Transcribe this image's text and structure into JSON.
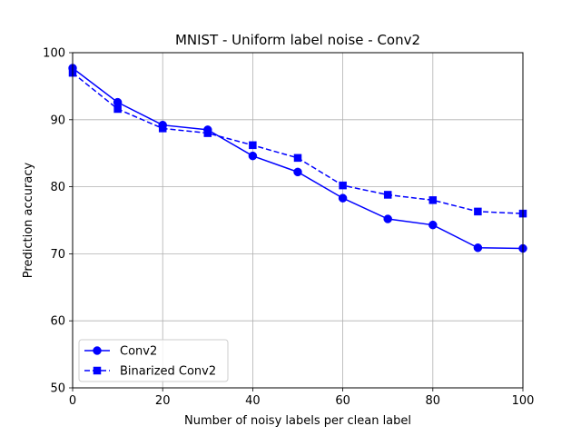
{
  "chart_data": {
    "type": "line",
    "title": "MNIST - Uniform label noise - Conv2",
    "xlabel": "Number of noisy labels per clean label",
    "ylabel": "Prediction accuracy",
    "xlim": [
      0,
      100
    ],
    "ylim": [
      50,
      100
    ],
    "xticks": [
      0,
      20,
      40,
      60,
      80,
      100
    ],
    "yticks": [
      50,
      60,
      70,
      80,
      90,
      100
    ],
    "grid": true,
    "legend_position": "lower-left",
    "x": [
      0,
      10,
      20,
      30,
      40,
      50,
      60,
      70,
      80,
      90,
      100
    ],
    "series": [
      {
        "name": "Conv2",
        "color": "#0000ff",
        "marker": "circle",
        "linestyle": "solid",
        "values": [
          97.7,
          92.6,
          89.2,
          88.5,
          84.6,
          82.2,
          78.3,
          75.2,
          74.3,
          70.9,
          70.8
        ]
      },
      {
        "name": "Binarized Conv2",
        "color": "#0000ff",
        "marker": "square",
        "linestyle": "dashed",
        "values": [
          97.0,
          91.6,
          88.7,
          88.0,
          86.2,
          84.3,
          80.2,
          78.8,
          78.0,
          76.3,
          76.0
        ]
      }
    ]
  }
}
